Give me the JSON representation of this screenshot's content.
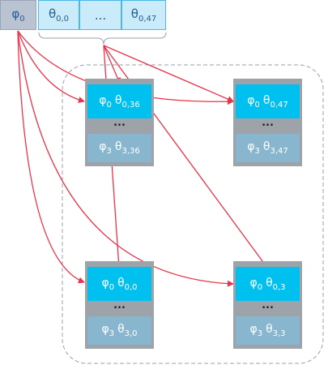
{
  "header": {
    "cells": [
      {
        "sym": "φ",
        "sub": "0"
      },
      {
        "sym": "θ",
        "sub": "0,0"
      },
      {
        "text": "..."
      },
      {
        "sym": "θ",
        "sub": "0,47"
      }
    ]
  },
  "nodes": [
    {
      "top": [
        {
          "sym": "φ",
          "sub": "0"
        },
        {
          "sym": "θ",
          "sub": "0,36"
        }
      ],
      "dots": "...",
      "bottom": [
        {
          "sym": "φ",
          "sub": "3"
        },
        {
          "sym": "θ",
          "sub": "3,36"
        }
      ]
    },
    {
      "top": [
        {
          "sym": "φ",
          "sub": "0"
        },
        {
          "sym": "θ",
          "sub": "0,47"
        }
      ],
      "dots": "...",
      "bottom": [
        {
          "sym": "φ",
          "sub": "3"
        },
        {
          "sym": "θ",
          "sub": "3,47"
        }
      ]
    },
    {
      "top": [
        {
          "sym": "φ",
          "sub": "0"
        },
        {
          "sym": "θ",
          "sub": "0,0"
        }
      ],
      "dots": "...",
      "bottom": [
        {
          "sym": "φ",
          "sub": "3"
        },
        {
          "sym": "θ",
          "sub": "3,0"
        }
      ]
    },
    {
      "top": [
        {
          "sym": "φ",
          "sub": "0"
        },
        {
          "sym": "θ",
          "sub": "0,3"
        }
      ],
      "dots": "...",
      "bottom": [
        {
          "sym": "φ",
          "sub": "3"
        },
        {
          "sym": "θ",
          "sub": "3,3"
        }
      ]
    }
  ]
}
